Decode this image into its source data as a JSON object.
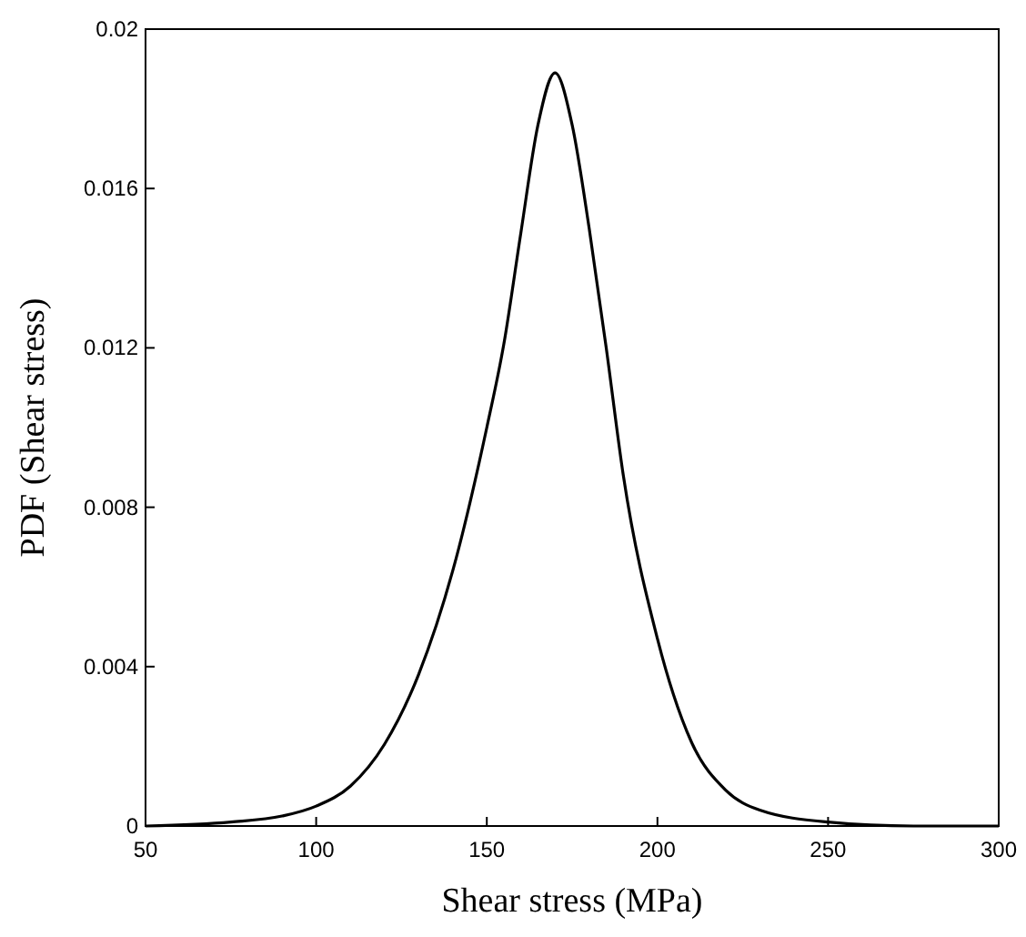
{
  "chart_data": {
    "type": "line",
    "xlabel": "Shear stress (MPa)",
    "ylabel": "PDF (Shear stress)",
    "x": [
      50,
      75,
      90,
      100,
      110,
      120,
      130,
      140,
      150,
      155,
      160,
      165,
      170,
      175,
      180,
      185,
      190,
      200,
      210,
      220,
      230,
      250,
      275,
      300
    ],
    "series": [
      {
        "color": "#000000",
        "values": [
          0,
          0.0001,
          0.00025,
          0.0005,
          0.001,
          0.00205,
          0.0038,
          0.0064,
          0.01,
          0.0121,
          0.0149,
          0.0176,
          0.0189,
          0.0176,
          0.015,
          0.012,
          0.0088,
          0.0047,
          0.0021,
          0.0009,
          0.0004,
          0.0001,
          0,
          0
        ]
      }
    ],
    "xlim": [
      50,
      300
    ],
    "ylim": [
      0,
      0.02
    ],
    "xticks": [
      50,
      100,
      150,
      200,
      250,
      300
    ],
    "yticks": [
      0,
      0.004,
      0.008,
      0.012,
      0.016,
      0.02
    ],
    "grid": false,
    "marker": "none",
    "line_style": "solid"
  }
}
